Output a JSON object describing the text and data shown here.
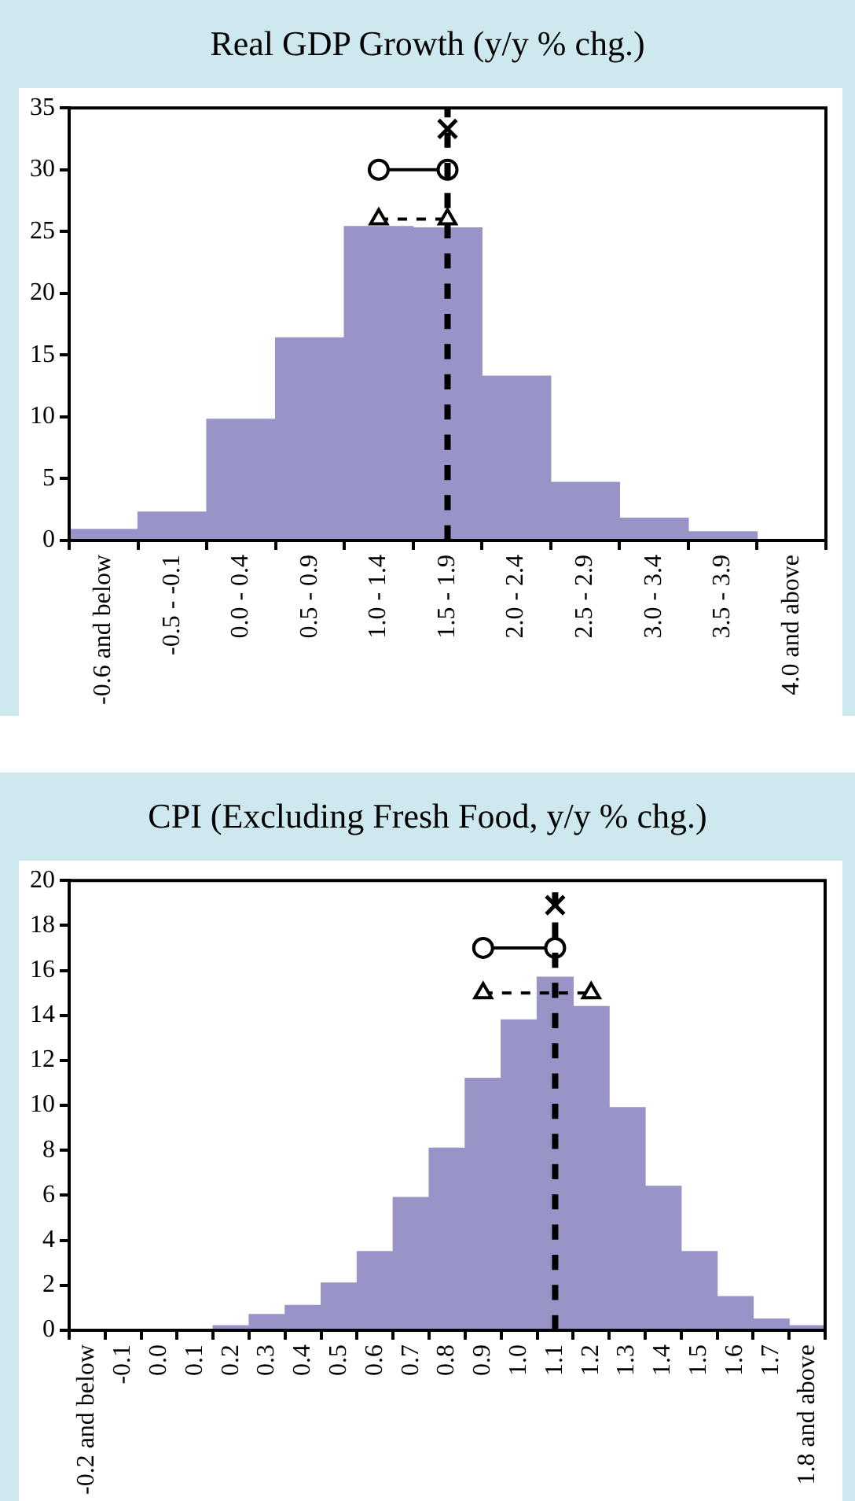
{
  "chart_data": [
    {
      "type": "bar",
      "title": "Real GDP Growth (y/y % chg.)",
      "categories": [
        "-0.6 and below",
        "-0.5 - -0.1",
        "0.0 - 0.4",
        "0.5 - 0.9",
        "1.0 - 1.4",
        "1.5 - 1.9",
        "2.0 - 2.4",
        "2.5 - 2.9",
        "3.0 - 3.4",
        "3.5 - 3.9",
        "4.0 and above"
      ],
      "series": [
        {
          "type": "bar",
          "color": "#9894c8",
          "values": [
            0.9,
            2.3,
            9.8,
            16.4,
            25.4,
            25.3,
            13.3,
            4.7,
            1.8,
            0.7,
            0
          ]
        },
        {
          "type": "scatter",
          "marker": "cross",
          "color": "#000000",
          "x": [
            "1.5 - 1.9"
          ],
          "values": [
            33.3
          ]
        },
        {
          "type": "line",
          "marker": "circle",
          "line_style": "solid",
          "color": "#000000",
          "x": [
            "1.0 - 1.4",
            "1.5 - 1.9"
          ],
          "values": [
            30,
            30
          ]
        },
        {
          "type": "line",
          "marker": "triangle",
          "line_style": "dashed",
          "color": "#000000",
          "x": [
            "1.0 - 1.4",
            "1.5 - 1.9"
          ],
          "values": [
            26,
            26
          ]
        }
      ],
      "ylim": [
        0,
        35
      ],
      "yticks": [
        0,
        5,
        10,
        15,
        20,
        25,
        30,
        35
      ],
      "ref_lines": [
        {
          "axis": "x",
          "value": "1.5 - 1.9",
          "line_style": "dashed",
          "color": "#000000"
        }
      ]
    },
    {
      "type": "bar",
      "title": "CPI (Excluding Fresh Food, y/y % chg.)",
      "categories": [
        "-0.2 and below",
        "-0.1",
        "0.0",
        "0.1",
        "0.2",
        "0.3",
        "0.4",
        "0.5",
        "0.6",
        "0.7",
        "0.8",
        "0.9",
        "1.0",
        "1.1",
        "1.2",
        "1.3",
        "1.4",
        "1.5",
        "1.6",
        "1.7",
        "1.8 and above"
      ],
      "series": [
        {
          "type": "bar",
          "color": "#9894c8",
          "values": [
            0,
            0,
            0,
            0,
            0.2,
            0.7,
            1.1,
            2.1,
            3.5,
            5.9,
            8.1,
            11.2,
            13.8,
            15.7,
            14.4,
            9.9,
            6.4,
            3.5,
            1.5,
            0.5,
            0.2
          ]
        },
        {
          "type": "scatter",
          "marker": "cross",
          "color": "#000000",
          "x": [
            "1.1"
          ],
          "values": [
            18.9
          ]
        },
        {
          "type": "line",
          "marker": "circle",
          "line_style": "solid",
          "color": "#000000",
          "x": [
            "0.9",
            "1.1"
          ],
          "values": [
            17,
            17
          ]
        },
        {
          "type": "line",
          "marker": "triangle",
          "line_style": "dashed",
          "color": "#000000",
          "x": [
            "0.9",
            "1.2"
          ],
          "values": [
            15,
            15
          ]
        }
      ],
      "ylim": [
        0,
        20
      ],
      "yticks": [
        0,
        2,
        4,
        6,
        8,
        10,
        12,
        14,
        16,
        18,
        20
      ],
      "ref_lines": [
        {
          "axis": "x",
          "value": "1.1",
          "line_style": "dashed",
          "color": "#000000"
        }
      ]
    }
  ]
}
